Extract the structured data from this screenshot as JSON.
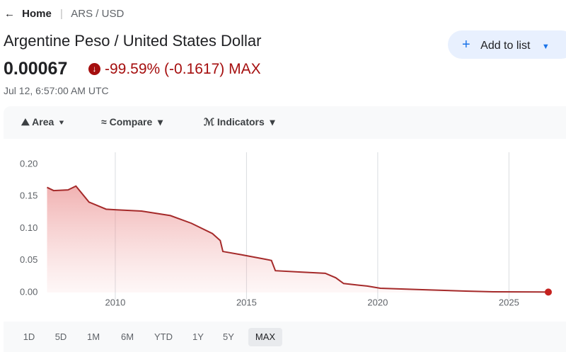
{
  "breadcrumb": {
    "home": "Home",
    "current": "ARS / USD"
  },
  "quote": {
    "name": "Argentine Peso / United States Dollar",
    "price": "0.00067",
    "change": "-99.59% (-0.1617)",
    "period": "MAX",
    "timestamp": "Jul 12, 6:57:00 AM UTC"
  },
  "button": "Add to list",
  "toolbar": [
    "Area",
    "Compare",
    "Indicators"
  ],
  "ranges": [
    "1D",
    "5D",
    "1M",
    "6M",
    "YTD",
    "1Y",
    "5Y",
    "MAX"
  ],
  "selected_range_index": 7,
  "chart_data": {
    "type": "area",
    "color": "#a52a2a",
    "x": [
      2007.4,
      2007.65,
      2008.2,
      2008.5,
      2009.0,
      2009.65,
      2010.05,
      2011.0,
      2012.1,
      2012.9,
      2013.7,
      2014.0,
      2014.1,
      2014.8,
      2015.7,
      2015.95,
      2016.1,
      2017.0,
      2018.0,
      2018.4,
      2018.7,
      2019.6,
      2020.1,
      2021.7,
      2023.35,
      2024.4,
      2026.5
    ],
    "values": [
      0.164,
      0.159,
      0.16,
      0.166,
      0.141,
      0.13,
      0.129,
      0.127,
      0.12,
      0.108,
      0.092,
      0.081,
      0.064,
      0.059,
      0.052,
      0.05,
      0.034,
      0.032,
      0.03,
      0.023,
      0.014,
      0.01,
      0.0066,
      0.0044,
      0.0022,
      0.0011,
      0.00067
    ],
    "xlim": [
      2007.4,
      2026.5
    ],
    "xticks": [
      2010,
      2015,
      2020,
      2025
    ],
    "ylim": [
      -0.005,
      0.215
    ],
    "yticks": [
      {
        "value": 0.2,
        "label": "0.20"
      },
      {
        "value": 0.15,
        "label": "0.15"
      },
      {
        "value": 0.1,
        "label": "0.10"
      },
      {
        "value": 0.05,
        "label": "0.05"
      },
      {
        "value": 0,
        "label": "0.00"
      }
    ],
    "xgrid": true
  }
}
